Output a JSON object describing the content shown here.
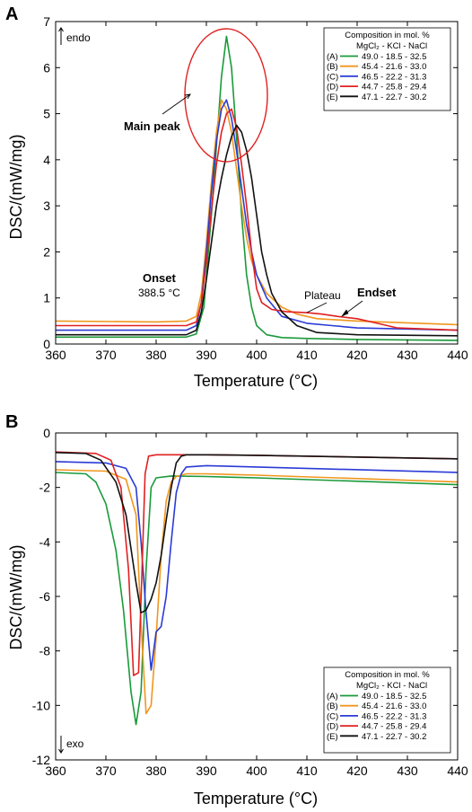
{
  "chart_data": [
    {
      "panel_label": "A",
      "type": "line",
      "xlabel": "Temperature (°C)",
      "ylabel": "DSC/(mW/mg)",
      "xlim": [
        360,
        440
      ],
      "ylim": [
        0,
        7
      ],
      "xticks": [
        "360",
        "370",
        "380",
        "390",
        "400",
        "410",
        "420",
        "430",
        "440"
      ],
      "yticks": [
        "0",
        "1",
        "2",
        "3",
        "4",
        "5",
        "6",
        "7"
      ],
      "direction_label": "endo",
      "legend": {
        "placement": "top-right",
        "title": "Composition in mol. %",
        "header": "MgCl₂ - KCl  -  NaCl"
      },
      "annotations": {
        "main_peak": "Main peak",
        "onset": "Onset",
        "onset_value": "388.5 °C",
        "plateau": "Plateau",
        "endset": "Endset"
      },
      "series": [
        {
          "name": "(A)",
          "label": "49.0   - 18.5  -  32.5",
          "color": "#1a9a3a",
          "x": [
            360,
            386,
            388,
            389.5,
            391,
            392,
            393,
            394,
            395,
            396,
            397,
            398,
            399,
            400,
            402,
            405,
            410,
            420,
            440
          ],
          "y": [
            0.15,
            0.15,
            0.22,
            0.8,
            2.8,
            4.3,
            5.8,
            6.68,
            6.0,
            4.5,
            2.8,
            1.5,
            0.8,
            0.4,
            0.2,
            0.14,
            0.12,
            0.1,
            0.08
          ]
        },
        {
          "name": "(B)",
          "label": "45.4   - 21.6  -  33.0",
          "color": "#f0961e",
          "x": [
            360,
            380,
            386,
            388,
            389,
            390,
            391,
            392,
            393,
            394,
            395,
            396,
            397,
            398,
            399,
            400,
            402,
            405,
            408,
            412,
            420,
            440
          ],
          "y": [
            0.5,
            0.48,
            0.5,
            0.6,
            1.1,
            2.2,
            3.5,
            4.6,
            5.3,
            5.1,
            4.6,
            3.8,
            3.0,
            2.3,
            1.8,
            1.5,
            1.1,
            0.8,
            0.65,
            0.55,
            0.5,
            0.42
          ]
        },
        {
          "name": "(C)",
          "label": "46.5   - 22.2  -  31.3",
          "color": "#2a3bd6",
          "x": [
            360,
            386,
            388,
            389,
            390,
            391,
            392,
            393,
            394,
            395,
            396,
            397,
            398,
            399,
            400,
            402,
            405,
            410,
            415,
            420,
            440
          ],
          "y": [
            0.3,
            0.3,
            0.4,
            0.9,
            2.0,
            3.3,
            4.4,
            5.1,
            5.3,
            4.9,
            4.2,
            3.4,
            2.6,
            2.0,
            1.5,
            1.0,
            0.6,
            0.45,
            0.4,
            0.35,
            0.3
          ]
        },
        {
          "name": "(D)",
          "label": "44.7   - 25.8  -  29.4",
          "color": "#e02020",
          "x": [
            360,
            386,
            388,
            389,
            390,
            391,
            392,
            393,
            394,
            395,
            396,
            397,
            398,
            399,
            400,
            401,
            403,
            406,
            410,
            413,
            416,
            420,
            424,
            428,
            440
          ],
          "y": [
            0.4,
            0.4,
            0.48,
            0.9,
            1.8,
            2.9,
            3.9,
            4.6,
            5.0,
            5.1,
            4.7,
            3.9,
            3.0,
            2.0,
            1.2,
            0.9,
            0.75,
            0.7,
            0.68,
            0.65,
            0.6,
            0.55,
            0.45,
            0.35,
            0.3
          ]
        },
        {
          "name": "(E)",
          "label": "47.1   - 22.7  -  30.2",
          "color": "#111111",
          "x": [
            360,
            386,
            388,
            389,
            390,
            391,
            392,
            393,
            394,
            395,
            396,
            397,
            398,
            399,
            400,
            401,
            402,
            403,
            405,
            408,
            412,
            420,
            440
          ],
          "y": [
            0.2,
            0.2,
            0.3,
            0.7,
            1.4,
            2.2,
            3.0,
            3.6,
            4.1,
            4.5,
            4.75,
            4.6,
            4.2,
            3.6,
            2.8,
            2.0,
            1.5,
            1.1,
            0.7,
            0.4,
            0.25,
            0.2,
            0.18
          ]
        }
      ]
    },
    {
      "panel_label": "B",
      "type": "line",
      "xlabel": "Temperature (°C)",
      "ylabel": "DSC/(mW/mg)",
      "xlim": [
        360,
        440
      ],
      "ylim": [
        -12,
        0
      ],
      "xticks": [
        "360",
        "370",
        "380",
        "390",
        "400",
        "410",
        "420",
        "430",
        "440"
      ],
      "yticks": [
        "0",
        "-2",
        "-4",
        "-6",
        "-8",
        "-10",
        "-12"
      ],
      "direction_label": "exo",
      "legend": {
        "placement": "bottom-right",
        "title": "Composition in mol. %",
        "header": "MgCl₂ - KCl  -  NaCl"
      },
      "series": [
        {
          "name": "(A)",
          "label": "49.0   - 18.5  -  32.5",
          "color": "#1a9a3a",
          "x": [
            360,
            366,
            368,
            370,
            372,
            373.5,
            375,
            376,
            377,
            378,
            379,
            380,
            383,
            390,
            400,
            440
          ],
          "y": [
            -1.45,
            -1.5,
            -1.8,
            -2.6,
            -4.3,
            -6.5,
            -9.5,
            -10.7,
            -9.5,
            -5.0,
            -2.0,
            -1.65,
            -1.58,
            -1.6,
            -1.65,
            -1.9
          ]
        },
        {
          "name": "(B)",
          "label": "45.4   - 21.6  -  33.0",
          "color": "#f0961e",
          "x": [
            360,
            370,
            374,
            376,
            377,
            378,
            379,
            380,
            381,
            382,
            383,
            384,
            386,
            390,
            400,
            440
          ],
          "y": [
            -1.35,
            -1.4,
            -1.7,
            -3.0,
            -7.0,
            -10.3,
            -10.0,
            -7.5,
            -4.5,
            -2.5,
            -1.8,
            -1.6,
            -1.5,
            -1.5,
            -1.55,
            -1.8
          ]
        },
        {
          "name": "(C)",
          "label": "46.5   - 22.2  -  31.3",
          "color": "#2a3bd6",
          "x": [
            360,
            370,
            374,
            376,
            377,
            378,
            379,
            380,
            381,
            382,
            383,
            384,
            385,
            386,
            390,
            400,
            440
          ],
          "y": [
            -1.05,
            -1.1,
            -1.3,
            -2.0,
            -4.0,
            -6.6,
            -8.7,
            -7.3,
            -7.1,
            -6.0,
            -4.0,
            -2.2,
            -1.5,
            -1.25,
            -1.2,
            -1.25,
            -1.45
          ]
        },
        {
          "name": "(D)",
          "label": "44.7   - 25.8  -  29.4",
          "color": "#e02020",
          "x": [
            360,
            368,
            371,
            373,
            374.5,
            375.5,
            376.5,
            377.2,
            377.8,
            378.5,
            380,
            390,
            400,
            440
          ],
          "y": [
            -0.7,
            -0.75,
            -1.0,
            -2.0,
            -5.0,
            -8.9,
            -8.8,
            -5.0,
            -1.5,
            -0.85,
            -0.8,
            -0.8,
            -0.82,
            -0.95
          ]
        },
        {
          "name": "(E)",
          "label": "47.1   - 22.7  -  30.2",
          "color": "#111111",
          "x": [
            360,
            366,
            369,
            372,
            374,
            376,
            377,
            378,
            379,
            380,
            381,
            382,
            383,
            384,
            385,
            386,
            390,
            400,
            440
          ],
          "y": [
            -0.72,
            -0.75,
            -1.0,
            -1.8,
            -3.0,
            -5.5,
            -6.6,
            -6.5,
            -6.1,
            -5.5,
            -4.5,
            -3.2,
            -2.0,
            -1.1,
            -0.85,
            -0.8,
            -0.8,
            -0.82,
            -0.95
          ]
        }
      ]
    }
  ]
}
